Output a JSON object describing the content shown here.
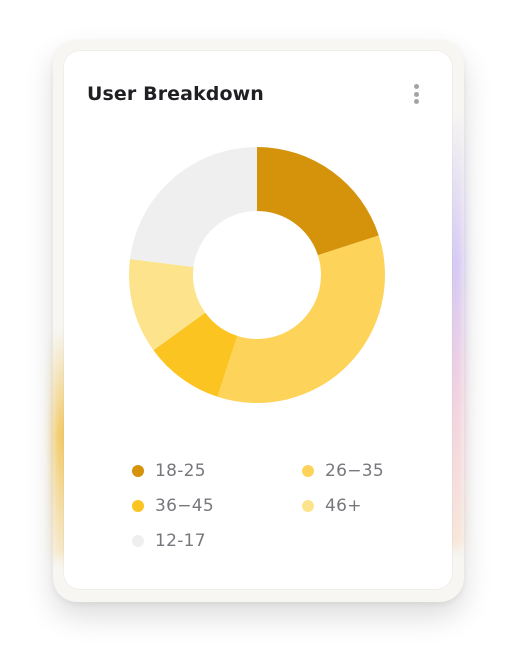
{
  "card": {
    "title": "User Breakdown",
    "menu_icon": "more-vertical-icon"
  },
  "chart_data": {
    "type": "pie",
    "title": "User Breakdown",
    "donut": true,
    "slices": [
      {
        "label": "18-25",
        "value": 20,
        "color": "#D4930A"
      },
      {
        "label": "26−35",
        "value": 35,
        "color": "#FDD35A"
      },
      {
        "label": "36−45",
        "value": 10,
        "color": "#FCC420"
      },
      {
        "label": "46+",
        "value": 12,
        "color": "#FDE48C"
      },
      {
        "label": "12-17",
        "value": 23,
        "color": "#EFEFEF"
      }
    ],
    "legend_position": "bottom"
  }
}
